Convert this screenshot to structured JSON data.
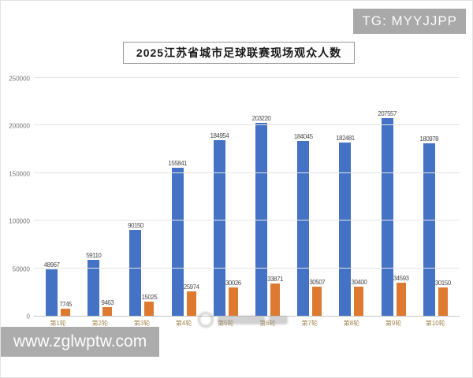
{
  "watermarks": {
    "top_right": "TG: MYYJJPP",
    "bottom_left": "www.zglwptw.com"
  },
  "chart_data": {
    "type": "bar",
    "title": "2025江苏省城市足球联赛现场观众人数",
    "categories": [
      "第1轮",
      "第2轮",
      "第3轮",
      "第4轮",
      "第5轮",
      "第6轮",
      "第7轮",
      "第8轮",
      "第9轮",
      "第10轮"
    ],
    "series": [
      {
        "name": "blue-series",
        "color": "#4472c4",
        "values": [
          48967,
          59110,
          90150,
          155841,
          184954,
          203220,
          184045,
          182481,
          207557,
          180978
        ]
      },
      {
        "name": "orange-series",
        "color": "#de7a30",
        "values": [
          7745,
          9463,
          15025,
          25974,
          30026,
          33871,
          30507,
          30400,
          34593,
          30150
        ]
      }
    ],
    "ylim": [
      0,
      250000
    ],
    "yticks": [
      0,
      50000,
      100000,
      150000,
      200000,
      250000
    ],
    "grid": true,
    "legend_position": "none",
    "xlabel": "",
    "ylabel": ""
  }
}
